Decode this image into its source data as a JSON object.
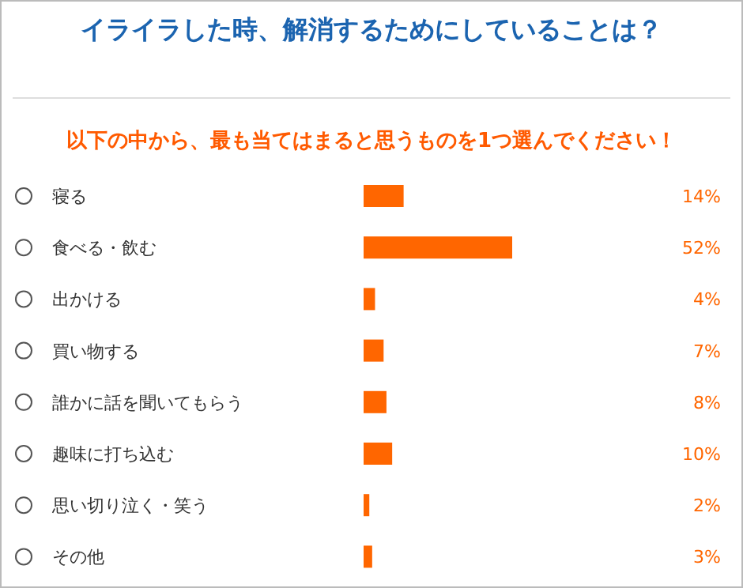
{
  "chart_data": {
    "type": "bar",
    "orientation": "horizontal",
    "title": "イライラした時、解消するためにしていることは？",
    "subtitle": "以下の中から、最も当てはまると思うものを1つ選んでください！",
    "categories": [
      "寝る",
      "食べる・飲む",
      "出かける",
      "買い物する",
      "誰かに話を聞いてもらう",
      "趣味に打ち込む",
      "思い切り泣く・笑う",
      "その他"
    ],
    "values": [
      14,
      52,
      4,
      7,
      8,
      10,
      2,
      3
    ],
    "value_labels": [
      "14%",
      "52%",
      "4%",
      "7%",
      "8%",
      "10%",
      "2%",
      "3%"
    ],
    "color": "#ff6600"
  }
}
